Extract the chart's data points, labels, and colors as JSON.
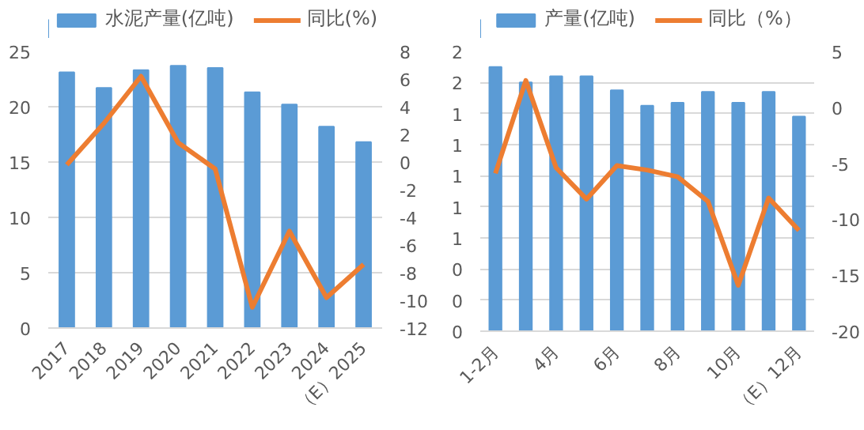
{
  "chart_data": [
    {
      "type": "bar",
      "categories": [
        "2017",
        "2018",
        "2019",
        "2020",
        "2021",
        "2022",
        "2023",
        "2024",
        "（E）2025"
      ],
      "series": [
        {
          "name": "水泥产量(亿吨)",
          "color": "#5b9bd5",
          "values": [
            23.1,
            21.7,
            23.3,
            23.7,
            23.5,
            21.3,
            20.2,
            18.2,
            16.8
          ]
        },
        {
          "name": "同比(%)",
          "type": "line",
          "axis": "y2",
          "color": "#ed7d31",
          "values": [
            -0.2,
            2.8,
            6.2,
            1.4,
            -0.5,
            -10.5,
            -5.0,
            -9.8,
            -7.4
          ]
        }
      ],
      "ylim": [
        0,
        25
      ],
      "yticks": [
        0,
        5,
        10,
        15,
        20,
        25
      ],
      "y2lim": [
        -12,
        8
      ],
      "y2ticks": [
        -12,
        -10,
        -8,
        -6,
        -4,
        -2,
        0,
        2,
        4,
        6,
        8
      ],
      "grid": "y",
      "legend": "top"
    },
    {
      "type": "bar",
      "categories": [
        "1-2月",
        null,
        "4月",
        null,
        "6月",
        null,
        "8月",
        null,
        "10月",
        null,
        "（E）12月"
      ],
      "series": [
        {
          "name": "产量(亿吨)",
          "color": "#5b9bd5",
          "values": [
            1.7,
            1.6,
            1.64,
            1.64,
            1.55,
            1.45,
            1.47,
            1.54,
            1.47,
            1.54,
            1.38
          ]
        },
        {
          "name": "同比（%）",
          "type": "line",
          "axis": "y2",
          "color": "#ed7d31",
          "values": [
            -5.9,
            2.4,
            -5.4,
            -8.2,
            -5.2,
            -5.6,
            -6.2,
            -8.4,
            -15.9,
            -8.1,
            -11.0
          ]
        }
      ],
      "ylim": [
        0,
        1.8
      ],
      "yticks": [
        {
          "value": 0,
          "label": "0"
        },
        {
          "value": 0.2,
          "label": "0"
        },
        {
          "value": 0.4,
          "label": "0"
        },
        {
          "value": 0.6,
          "label": "1"
        },
        {
          "value": 0.8,
          "label": "1"
        },
        {
          "value": 1.0,
          "label": "1"
        },
        {
          "value": 1.2,
          "label": "1"
        },
        {
          "value": 1.4,
          "label": "1"
        },
        {
          "value": 1.6,
          "label": "2"
        },
        {
          "value": 1.8,
          "label": "2"
        }
      ],
      "y2lim": [
        -20,
        5
      ],
      "y2ticks": [
        -20,
        -15,
        -10,
        -5,
        0,
        5
      ],
      "grid": "y",
      "legend": "top"
    }
  ]
}
